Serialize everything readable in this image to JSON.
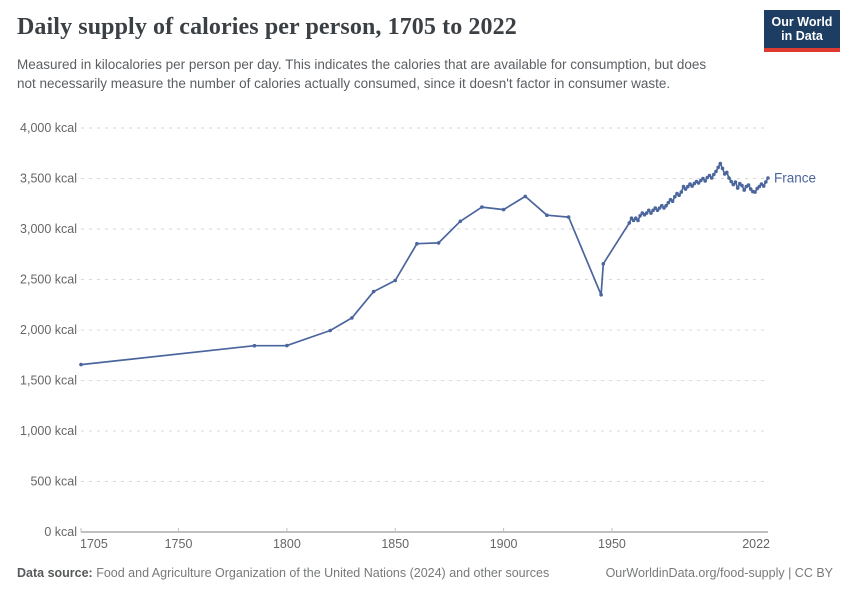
{
  "header": {
    "title": "Daily supply of calories per person, 1705 to 2022",
    "subtitle": "Measured in kilocalories per person per day. This indicates the calories that are available for consumption, but does not necessarily measure the number of calories actually consumed, since it doesn't factor in consumer waste.",
    "logo": {
      "line1": "Our World",
      "line2": "in Data",
      "bg_color": "#1d3d63",
      "accent_color": "#dd3b31"
    }
  },
  "chart_data": {
    "type": "line",
    "title": "Daily supply of calories per person, 1705 to 2022",
    "xlabel": "",
    "ylabel": "",
    "xlim": [
      1705,
      2022
    ],
    "ylim": [
      0,
      4000
    ],
    "x_ticks": [
      1705,
      1750,
      1800,
      1850,
      1900,
      1950,
      2022
    ],
    "y_ticks": [
      0,
      500,
      1000,
      1500,
      2000,
      2500,
      3000,
      3500,
      4000
    ],
    "y_tick_suffix": " kcal",
    "grid": "horizontal-dashed",
    "legend_position": "end-of-line-label",
    "line_color": "#4b659d",
    "grid_color": "#d7d7d7",
    "axis_color": "#9a9a9a",
    "tick_label_color": "#666666",
    "series": [
      {
        "name": "France",
        "points": [
          [
            1705,
            1657
          ],
          [
            1785,
            1845
          ],
          [
            1800,
            1846
          ],
          [
            1820,
            1995
          ],
          [
            1830,
            2120
          ],
          [
            1840,
            2380
          ],
          [
            1850,
            2490
          ],
          [
            1860,
            2854
          ],
          [
            1870,
            2862
          ],
          [
            1880,
            3076
          ],
          [
            1890,
            3217
          ],
          [
            1900,
            3192
          ],
          [
            1910,
            3323
          ],
          [
            1920,
            3137
          ],
          [
            1930,
            3118
          ],
          [
            1945,
            2349
          ],
          [
            1946,
            2655
          ],
          [
            1958,
            3060
          ],
          [
            1959,
            3107
          ],
          [
            1960,
            3084
          ],
          [
            1961,
            3107
          ],
          [
            1962,
            3084
          ],
          [
            1963,
            3131
          ],
          [
            1964,
            3157
          ],
          [
            1965,
            3141
          ],
          [
            1966,
            3157
          ],
          [
            1967,
            3185
          ],
          [
            1968,
            3157
          ],
          [
            1969,
            3185
          ],
          [
            1970,
            3208
          ],
          [
            1971,
            3185
          ],
          [
            1972,
            3208
          ],
          [
            1973,
            3231
          ],
          [
            1974,
            3208
          ],
          [
            1975,
            3231
          ],
          [
            1976,
            3260
          ],
          [
            1977,
            3290
          ],
          [
            1978,
            3275
          ],
          [
            1979,
            3320
          ],
          [
            1980,
            3350
          ],
          [
            1981,
            3335
          ],
          [
            1982,
            3365
          ],
          [
            1983,
            3420
          ],
          [
            1984,
            3395
          ],
          [
            1985,
            3420
          ],
          [
            1986,
            3445
          ],
          [
            1987,
            3425
          ],
          [
            1988,
            3450
          ],
          [
            1989,
            3470
          ],
          [
            1990,
            3455
          ],
          [
            1991,
            3480
          ],
          [
            1992,
            3500
          ],
          [
            1993,
            3475
          ],
          [
            1994,
            3510
          ],
          [
            1995,
            3530
          ],
          [
            1996,
            3505
          ],
          [
            1997,
            3540
          ],
          [
            1998,
            3570
          ],
          [
            1999,
            3610
          ],
          [
            2000,
            3648
          ],
          [
            2001,
            3600
          ],
          [
            2002,
            3545
          ],
          [
            2003,
            3560
          ],
          [
            2004,
            3505
          ],
          [
            2005,
            3470
          ],
          [
            2006,
            3440
          ],
          [
            2007,
            3465
          ],
          [
            2008,
            3405
          ],
          [
            2009,
            3450
          ],
          [
            2010,
            3430
          ],
          [
            2011,
            3385
          ],
          [
            2012,
            3420
          ],
          [
            2013,
            3435
          ],
          [
            2014,
            3395
          ],
          [
            2015,
            3370
          ],
          [
            2016,
            3365
          ],
          [
            2017,
            3400
          ],
          [
            2018,
            3420
          ],
          [
            2019,
            3445
          ],
          [
            2020,
            3425
          ],
          [
            2021,
            3465
          ],
          [
            2022,
            3505
          ]
        ]
      }
    ]
  },
  "footer": {
    "source_label": "Data source:",
    "source_text": " Food and Agriculture Organization of the United Nations (2024) and other sources",
    "link_text": "OurWorldinData.org/food-supply | CC BY"
  }
}
